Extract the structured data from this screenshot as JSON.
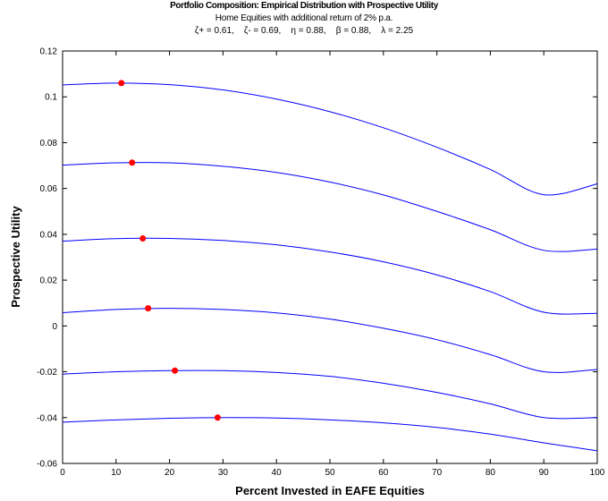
{
  "header": {
    "title": "Portfolio Composition: Empirical Distribution with Prospective Utility",
    "subtitle": "Home Equities with additional return of 2% p.a.",
    "params": "ζ+ = 0.61,    ζ- = 0.69,    η = 0.88,    β = 0.88,    λ = 2.25"
  },
  "chart_data": {
    "type": "line",
    "xlabel": "Percent Invested in EAFE Equities",
    "ylabel": "Prospective Utility",
    "xlim": [
      0,
      100
    ],
    "ylim": [
      -0.06,
      0.12
    ],
    "xticks": [
      "0",
      "10",
      "20",
      "30",
      "40",
      "50",
      "60",
      "70",
      "80",
      "90",
      "100"
    ],
    "yticks": [
      "-0.06",
      "-0.04",
      "-0.02",
      "0",
      "0.02",
      "0.04",
      "0.06",
      "0.08",
      "0.1",
      "0.12"
    ],
    "line_color": "#0000ff",
    "marker_color": "#ff0000",
    "grid": false,
    "x": [
      0,
      10,
      20,
      30,
      40,
      50,
      60,
      70,
      80,
      90,
      100
    ],
    "series": [
      {
        "values": [
          0.1052,
          0.106,
          0.1053,
          0.103,
          0.099,
          0.0935,
          0.0865,
          0.078,
          0.0683,
          0.0573,
          0.062
        ],
        "optimum": [
          11,
          0.106
        ]
      },
      {
        "values": [
          0.0702,
          0.0712,
          0.0712,
          0.0697,
          0.067,
          0.0628,
          0.0572,
          0.05,
          0.042,
          0.033,
          0.0335
        ],
        "optimum": [
          13,
          0.0713
        ]
      },
      {
        "values": [
          0.037,
          0.0381,
          0.0382,
          0.0373,
          0.0354,
          0.0323,
          0.028,
          0.0223,
          0.015,
          0.006,
          0.0055
        ],
        "optimum": [
          15,
          0.0382
        ]
      },
      {
        "values": [
          0.0058,
          0.0072,
          0.0077,
          0.0072,
          0.0057,
          0.003,
          -0.001,
          -0.006,
          -0.0125,
          -0.02,
          -0.019
        ],
        "optimum": [
          16,
          0.0077
        ]
      },
      {
        "values": [
          -0.021,
          -0.02,
          -0.0195,
          -0.0195,
          -0.0203,
          -0.022,
          -0.025,
          -0.029,
          -0.034,
          -0.04,
          -0.04
        ],
        "optimum": [
          21,
          -0.0195
        ]
      },
      {
        "values": [
          -0.042,
          -0.041,
          -0.0403,
          -0.04,
          -0.0402,
          -0.041,
          -0.0423,
          -0.0443,
          -0.0472,
          -0.051,
          -0.0545
        ],
        "optimum": [
          29,
          -0.04
        ]
      }
    ]
  }
}
